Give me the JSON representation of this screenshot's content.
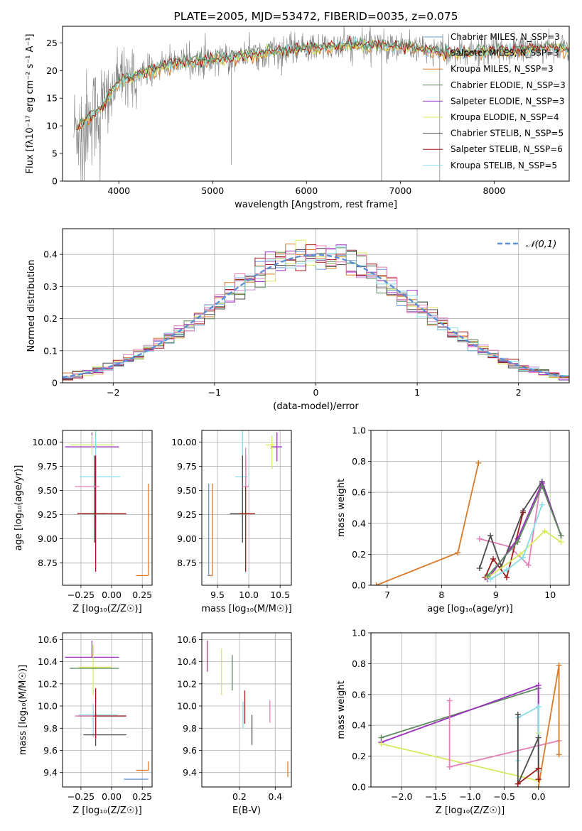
{
  "colors": {
    "chabrier_miles": "#6a9bd9",
    "salpeter_miles": "#d18ad8",
    "kroupa_miles": "#d97a2b",
    "chabrier_elodie": "#5f8a5f",
    "salpeter_elodie": "#9b2fbf",
    "kroupa_elodie": "#d8e860",
    "chabrier_stelib": "#4a4a4a",
    "salpeter_stelib": "#a01818",
    "kroupa_stelib": "#86dde6",
    "pink": "#e47fb8",
    "gauss": "#5a8fd6"
  },
  "chart_data": [
    {
      "id": "spectrum",
      "type": "line",
      "title": "PLATE=2005, MJD=53472, FIBERID=0035, z=0.075",
      "xlabel": "wavelength [Angstrom, rest frame]",
      "ylabel": "Flux [fλ10⁻¹⁷ erg cm⁻² s⁻¹ A⁻¹]",
      "xlim": [
        3400,
        8800
      ],
      "ylim": [
        0,
        28
      ],
      "xticks": [
        4000,
        5000,
        6000,
        7000,
        8000
      ],
      "yticks": [
        0,
        5,
        10,
        15,
        20,
        25
      ],
      "legend_position": "upper right",
      "legend": [
        "Chabrier MILES, N_SSP=3",
        "Salpeter MILES, N_SSP=3",
        "Kroupa MILES, N_SSP=3",
        "Chabrier ELODIE, N_SSP=3",
        "Salpeter ELODIE, N_SSP=3",
        "Kroupa ELODIE, N_SSP=4",
        "Chabrier STELIB, N_SSP=5",
        "Salpeter STELIB, N_SSP=6",
        "Kroupa STELIB, N_SSP=5"
      ],
      "data_envelope": {
        "x": [
          3500,
          3800,
          4000,
          4500,
          5000,
          5500,
          6000,
          6500,
          7000,
          7500,
          8000,
          8500,
          8800
        ],
        "y": [
          9,
          13,
          18,
          21,
          22,
          23,
          24,
          24.5,
          24.5,
          23,
          23.5,
          24,
          24
        ]
      }
    },
    {
      "id": "residuals",
      "type": "histogram",
      "xlabel": "(data-model)/error",
      "ylabel": "Normed distribution",
      "xlim": [
        -2.5,
        2.5
      ],
      "ylim": [
        0,
        0.48
      ],
      "xticks": [
        -2,
        -1,
        0,
        1,
        2
      ],
      "yticks": [
        0.0,
        0.1,
        0.2,
        0.3,
        0.4
      ],
      "legend": "𝒩(0,1)",
      "legend_position": "upper right",
      "grid": true
    },
    {
      "id": "age_vs_Z",
      "type": "scatter",
      "xlabel": "Z [log₁₀(Z/Z☉)]",
      "ylabel": "age  [log₁₀(age/yr)]",
      "xlim": [
        -0.4,
        0.33
      ],
      "ylim": [
        8.52,
        10.12
      ],
      "xticks": [
        -0.25,
        0.0,
        0.25
      ],
      "xtick_labels": [
        "−0.25",
        "0.00",
        "0.25"
      ],
      "yticks": [
        8.75,
        9.0,
        9.25,
        9.5,
        9.75,
        10.0
      ],
      "ytick_labels": [
        "8.75",
        "9.00",
        "9.25",
        "9.50",
        "9.75",
        "10.00"
      ],
      "points": [
        {
          "x": 0.3,
          "y": 8.62,
          "xerr": [
            0.1,
            0.0
          ],
          "yerr": [
            0.0,
            0.95
          ],
          "series": "kroupa_miles"
        },
        {
          "x": -0.16,
          "y": 9.95,
          "xerr": [
            0.22,
            0.22
          ],
          "yerr": [
            0.0,
            0.15
          ],
          "series": "salpeter_elodie"
        },
        {
          "x": -0.16,
          "y": 9.97,
          "xerr": [
            0.18,
            0.18
          ],
          "yerr": [
            0.1,
            0.1
          ],
          "series": "kroupa_elodie"
        },
        {
          "x": -0.13,
          "y": 9.64,
          "xerr": [
            0.13,
            0.2
          ],
          "yerr": [
            0.5,
            0.5
          ],
          "series": "kroupa_stelib"
        },
        {
          "x": -0.14,
          "y": 9.26,
          "xerr": [
            0.1,
            0.1
          ],
          "yerr": [
            0.3,
            0.6
          ],
          "series": "chabrier_stelib"
        },
        {
          "x": -0.13,
          "y": 9.26,
          "xerr": [
            0.15,
            0.25
          ],
          "yerr": [
            0.6,
            0.6
          ],
          "series": "salpeter_stelib"
        },
        {
          "x": -0.2,
          "y": 9.54,
          "xerr": [
            0.1,
            0.1
          ],
          "yerr": [
            0.0,
            0.0
          ],
          "series": "pink"
        }
      ]
    },
    {
      "id": "age_vs_mass",
      "type": "scatter",
      "xlabel": "mass [log₁₀(M/M☉)]",
      "ylabel": "",
      "xlim": [
        9.25,
        10.68
      ],
      "ylim": [
        8.52,
        10.12
      ],
      "xticks": [
        9.5,
        10.0,
        10.5
      ],
      "xtick_labels": [
        "9.5",
        "10.0",
        "10.5"
      ],
      "yticks": [
        8.75,
        9.0,
        9.25,
        9.5,
        9.75,
        10.0
      ],
      "ytick_labels": [
        "8.75",
        "9.00",
        "9.25",
        "9.50",
        "9.75",
        "10.00"
      ],
      "points": [
        {
          "x": 9.36,
          "y": 8.62,
          "xerr": [
            0.02,
            0.06
          ],
          "yerr": [
            0.0,
            0.95
          ],
          "series": "chabrier_miles"
        },
        {
          "x": 9.42,
          "y": 8.62,
          "xerr": [
            0.06,
            0.0
          ],
          "yerr": [
            0.0,
            0.95
          ],
          "series": "kroupa_miles"
        },
        {
          "x": 10.45,
          "y": 9.95,
          "xerr": [
            0.1,
            0.08
          ],
          "yerr": [
            0.15,
            0.15
          ],
          "series": "salpeter_elodie"
        },
        {
          "x": 10.37,
          "y": 9.97,
          "xerr": [
            0.1,
            0.05
          ],
          "yerr": [
            0.25,
            0.1
          ],
          "series": "kroupa_elodie"
        },
        {
          "x": 9.9,
          "y": 9.64,
          "xerr": [
            0.12,
            0.08
          ],
          "yerr": [
            0.5,
            0.5
          ],
          "series": "kroupa_stelib"
        },
        {
          "x": 9.9,
          "y": 9.26,
          "xerr": [
            0.2,
            0.1
          ],
          "yerr": [
            0.3,
            0.6
          ],
          "series": "chabrier_stelib"
        },
        {
          "x": 9.95,
          "y": 9.26,
          "xerr": [
            0.1,
            0.15
          ],
          "yerr": [
            0.6,
            0.6
          ],
          "series": "salpeter_stelib"
        },
        {
          "x": 9.95,
          "y": 9.54,
          "xerr": [
            0.05,
            0.05
          ],
          "yerr": [
            0.0,
            0.4
          ],
          "series": "pink"
        }
      ]
    },
    {
      "id": "weight_vs_age",
      "type": "line",
      "xlabel": "age  [log₁₀(age/yr)]",
      "ylabel": "mass weight",
      "xlim": [
        6.7,
        10.35
      ],
      "ylim": [
        0,
        1
      ],
      "xticks": [
        7,
        8,
        9,
        10
      ],
      "yticks": [
        0.0,
        0.2,
        0.4,
        0.6,
        0.8,
        1.0
      ],
      "ytick_labels": [
        "0.0",
        "0.2",
        "0.4",
        "0.6",
        "0.8",
        "1.0"
      ],
      "grid": true,
      "series": [
        {
          "key": "kroupa_miles",
          "x": [
            6.8,
            8.3,
            8.68
          ],
          "y": [
            0.0,
            0.21,
            0.79
          ]
        },
        {
          "key": "pink",
          "x": [
            8.7,
            9.25,
            9.6,
            9.8
          ],
          "y": [
            0.3,
            0.25,
            0.13,
            0.6
          ]
        },
        {
          "key": "chabrier_stelib",
          "x": [
            8.7,
            8.9,
            9.1,
            9.5,
            9.85,
            10.2
          ],
          "y": [
            0.11,
            0.32,
            0.12,
            0.48,
            0.67,
            0.32
          ]
        },
        {
          "key": "salpeter_stelib",
          "x": [
            8.8,
            8.95,
            9.2,
            9.5
          ],
          "y": [
            0.05,
            0.17,
            0.05,
            0.47
          ]
        },
        {
          "key": "salpeter_elodie",
          "x": [
            8.85,
            9.4,
            9.85,
            10.2
          ],
          "y": [
            0.04,
            0.3,
            0.66,
            0.32
          ]
        },
        {
          "key": "kroupa_elodie",
          "x": [
            8.85,
            9.45,
            9.9,
            10.2
          ],
          "y": [
            0.05,
            0.2,
            0.35,
            0.28
          ]
        },
        {
          "key": "kroupa_stelib",
          "x": [
            8.9,
            9.2,
            9.5,
            9.85
          ],
          "y": [
            0.04,
            0.1,
            0.18,
            0.52
          ]
        },
        {
          "key": "chabrier_elodie",
          "x": [
            8.85,
            9.4,
            9.85,
            10.2
          ],
          "y": [
            0.06,
            0.28,
            0.64,
            0.32
          ]
        }
      ]
    },
    {
      "id": "mass_vs_Z",
      "type": "scatter",
      "xlabel": "Z [log₁₀(Z/Z☉)]",
      "ylabel": "mass [log₁₀(M/M☉)]",
      "xlim": [
        -0.4,
        0.33
      ],
      "ylim": [
        9.27,
        10.66
      ],
      "xticks": [
        -0.25,
        0.0,
        0.25
      ],
      "xtick_labels": [
        "−0.25",
        "0.00",
        "0.25"
      ],
      "yticks": [
        9.4,
        9.6,
        9.8,
        10.0,
        10.2,
        10.4,
        10.6
      ],
      "ytick_labels": [
        "9.4",
        "9.6",
        "9.8",
        "10.0",
        "10.2",
        "10.4",
        "10.6"
      ],
      "points": [
        {
          "x": 0.3,
          "y": 9.42,
          "xerr": [
            0.1,
            0.0
          ],
          "yerr": [
            0.0,
            0.08
          ],
          "series": "kroupa_miles"
        },
        {
          "x": 0.3,
          "y": 9.34,
          "xerr": [
            0.2,
            0.0
          ],
          "yerr": [
            0.0,
            0.0
          ],
          "series": "chabrier_miles"
        },
        {
          "x": -0.16,
          "y": 10.44,
          "xerr": [
            0.22,
            0.22
          ],
          "yerr": [
            0.0,
            0.15
          ],
          "series": "salpeter_elodie"
        },
        {
          "x": -0.15,
          "y": 10.35,
          "xerr": [
            0.12,
            0.15
          ],
          "yerr": [
            0.25,
            0.2
          ],
          "series": "kroupa_elodie"
        },
        {
          "x": -0.14,
          "y": 10.34,
          "xerr": [
            0.2,
            0.2
          ],
          "yerr": [
            0.0,
            0.0
          ],
          "series": "chabrier_elodie"
        },
        {
          "x": -0.15,
          "y": 9.92,
          "xerr": [
            0.12,
            0.2
          ],
          "yerr": [
            0.2,
            0.1
          ],
          "series": "kroupa_stelib"
        },
        {
          "x": -0.13,
          "y": 9.74,
          "xerr": [
            0.1,
            0.25
          ],
          "yerr": [
            0.1,
            0.2
          ],
          "series": "chabrier_stelib"
        },
        {
          "x": -0.13,
          "y": 9.91,
          "xerr": [
            0.15,
            0.25
          ],
          "yerr": [
            0.2,
            0.25
          ],
          "series": "salpeter_stelib"
        },
        {
          "x": -0.2,
          "y": 9.91,
          "xerr": [
            0.1,
            0.05
          ],
          "yerr": [
            0.0,
            0.0
          ],
          "series": "pink"
        }
      ]
    },
    {
      "id": "mass_vs_ebv",
      "type": "scatter",
      "xlabel": "E(B-V)",
      "ylabel": "",
      "xlim": [
        -0.01,
        0.49
      ],
      "ylim": [
        9.27,
        10.66
      ],
      "xticks": [
        0.2,
        0.4
      ],
      "xtick_labels": [
        "0.2",
        "0.4"
      ],
      "yticks": [
        9.4,
        9.6,
        9.8,
        10.0,
        10.2,
        10.4,
        10.6
      ],
      "ytick_labels": [
        "9.4",
        "9.6",
        "9.8",
        "10.0",
        "10.2",
        "10.4",
        "10.6"
      ],
      "points": [
        {
          "x": 0.02,
          "y": 10.45,
          "xerr": [
            0,
            0
          ],
          "yerr": [
            0.14,
            0.14
          ],
          "series": "salpeter_elodie"
        },
        {
          "x": 0.1,
          "y": 10.3,
          "xerr": [
            0,
            0
          ],
          "yerr": [
            0.2,
            0.22
          ],
          "series": "kroupa_elodie"
        },
        {
          "x": 0.16,
          "y": 10.3,
          "xerr": [
            0,
            0
          ],
          "yerr": [
            0.16,
            0.16
          ],
          "series": "chabrier_elodie"
        },
        {
          "x": 0.22,
          "y": 9.92,
          "xerr": [
            0,
            0
          ],
          "yerr": [
            0.12,
            0.12
          ],
          "series": "kroupa_stelib"
        },
        {
          "x": 0.23,
          "y": 9.98,
          "xerr": [
            0,
            0
          ],
          "yerr": [
            0.14,
            0.16
          ],
          "series": "salpeter_stelib"
        },
        {
          "x": 0.27,
          "y": 9.78,
          "xerr": [
            0,
            0
          ],
          "yerr": [
            0.13,
            0.14
          ],
          "series": "chabrier_stelib"
        },
        {
          "x": 0.37,
          "y": 9.95,
          "xerr": [
            0,
            0
          ],
          "yerr": [
            0.1,
            0.1
          ],
          "series": "pink"
        },
        {
          "x": 0.47,
          "y": 9.42,
          "xerr": [
            0,
            0
          ],
          "yerr": [
            0.06,
            0.08
          ],
          "series": "kroupa_miles"
        }
      ]
    },
    {
      "id": "weight_vs_Z",
      "type": "line",
      "xlabel": "Z [log₁₀(Z/Z☉)]",
      "ylabel": "mass weight",
      "xlim": [
        -2.45,
        0.45
      ],
      "ylim": [
        0,
        1
      ],
      "xticks": [
        -2.0,
        -1.5,
        -1.0,
        -0.5,
        0.0
      ],
      "xtick_labels": [
        "−2.0",
        "−1.5",
        "−1.0",
        "−0.5",
        "0.0"
      ],
      "yticks": [
        0.0,
        0.2,
        0.4,
        0.6,
        0.8,
        1.0
      ],
      "ytick_labels": [
        "0.0",
        "0.2",
        "0.4",
        "0.6",
        "0.8",
        "1.0"
      ],
      "grid": true,
      "series": [
        {
          "key": "chabrier_elodie",
          "x": [
            -2.3,
            0.0,
            0.0
          ],
          "y": [
            0.32,
            0.64,
            0.05
          ]
        },
        {
          "key": "salpeter_elodie",
          "x": [
            -2.3,
            0.0,
            0.0
          ],
          "y": [
            0.29,
            0.66,
            0.1
          ]
        },
        {
          "key": "kroupa_elodie",
          "x": [
            -2.3,
            0.0,
            0.0
          ],
          "y": [
            0.28,
            0.04,
            0.35
          ]
        },
        {
          "key": "pink",
          "x": [
            -1.3,
            -1.3,
            0.3
          ],
          "y": [
            0.56,
            0.13,
            0.3
          ]
        },
        {
          "key": "kroupa_miles",
          "x": [
            0.0,
            0.3,
            0.3
          ],
          "y": [
            0.0,
            0.79,
            0.21
          ]
        },
        {
          "key": "kroupa_stelib",
          "x": [
            -0.3,
            -0.3,
            0.0,
            0.0
          ],
          "y": [
            0.17,
            0.45,
            0.52,
            0.1
          ]
        },
        {
          "key": "chabrier_stelib",
          "x": [
            -0.3,
            -0.3,
            0.0,
            0.0
          ],
          "y": [
            0.47,
            0.02,
            0.32,
            0.12
          ]
        },
        {
          "key": "salpeter_stelib",
          "x": [
            -0.3,
            0.0,
            0.0
          ],
          "y": [
            0.02,
            0.12,
            0.05
          ]
        }
      ]
    }
  ]
}
